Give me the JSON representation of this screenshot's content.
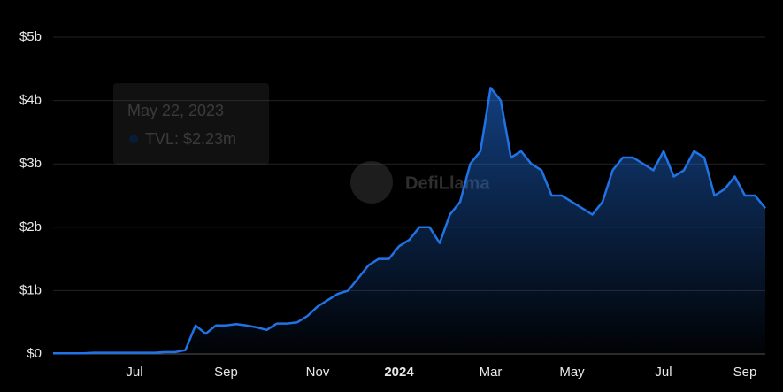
{
  "chart_data": {
    "type": "area",
    "categories": [
      null,
      null,
      null,
      null,
      null,
      null,
      null,
      null,
      "Jul",
      null,
      null,
      null,
      null,
      null,
      null,
      null,
      null,
      "Sep",
      null,
      null,
      null,
      null,
      null,
      null,
      null,
      null,
      "Nov",
      null,
      null,
      null,
      null,
      null,
      null,
      null,
      "2024",
      null,
      null,
      null,
      null,
      null,
      null,
      null,
      null,
      "Mar",
      null,
      null,
      null,
      null,
      null,
      null,
      null,
      "May",
      null,
      null,
      null,
      null,
      null,
      null,
      null,
      null,
      "Jul",
      null,
      null,
      null,
      null,
      null,
      null,
      null,
      "Sep",
      null,
      null
    ],
    "series": [
      {
        "color": "#2172e5",
        "values": [
          0.01,
          0.01,
          0.01,
          0.01,
          0.02,
          0.02,
          0.02,
          0.02,
          0.02,
          0.02,
          0.02,
          0.03,
          0.03,
          0.06,
          0.45,
          0.32,
          0.45,
          0.45,
          0.47,
          0.45,
          0.42,
          0.38,
          0.48,
          0.48,
          0.5,
          0.6,
          0.75,
          0.85,
          0.95,
          1.0,
          1.2,
          1.4,
          1.5,
          1.5,
          1.7,
          1.8,
          2.0,
          2.0,
          1.75,
          2.2,
          2.4,
          3.0,
          3.2,
          4.2,
          4.0,
          3.1,
          3.2,
          3.0,
          2.9,
          2.5,
          2.5,
          2.4,
          2.3,
          2.2,
          2.4,
          2.9,
          3.1,
          3.1,
          3.0,
          2.9,
          3.2,
          2.8,
          2.9,
          3.2,
          3.1,
          2.5,
          2.6,
          2.8,
          2.5,
          2.5,
          2.3
        ]
      }
    ],
    "ylim": [
      0,
      5
    ],
    "yticks": [
      {
        "value": 0,
        "label": "$0"
      },
      {
        "value": 1,
        "label": "$1b"
      },
      {
        "value": 2,
        "label": "$2b"
      },
      {
        "value": 3,
        "label": "$3b"
      },
      {
        "value": 4,
        "label": "$4b"
      },
      {
        "value": 5,
        "label": "$5b"
      }
    ],
    "grid": true,
    "tooltip": {
      "date": "May 22, 2023",
      "text": "TVL: $2.23m"
    },
    "watermark": "DefiLlama"
  }
}
